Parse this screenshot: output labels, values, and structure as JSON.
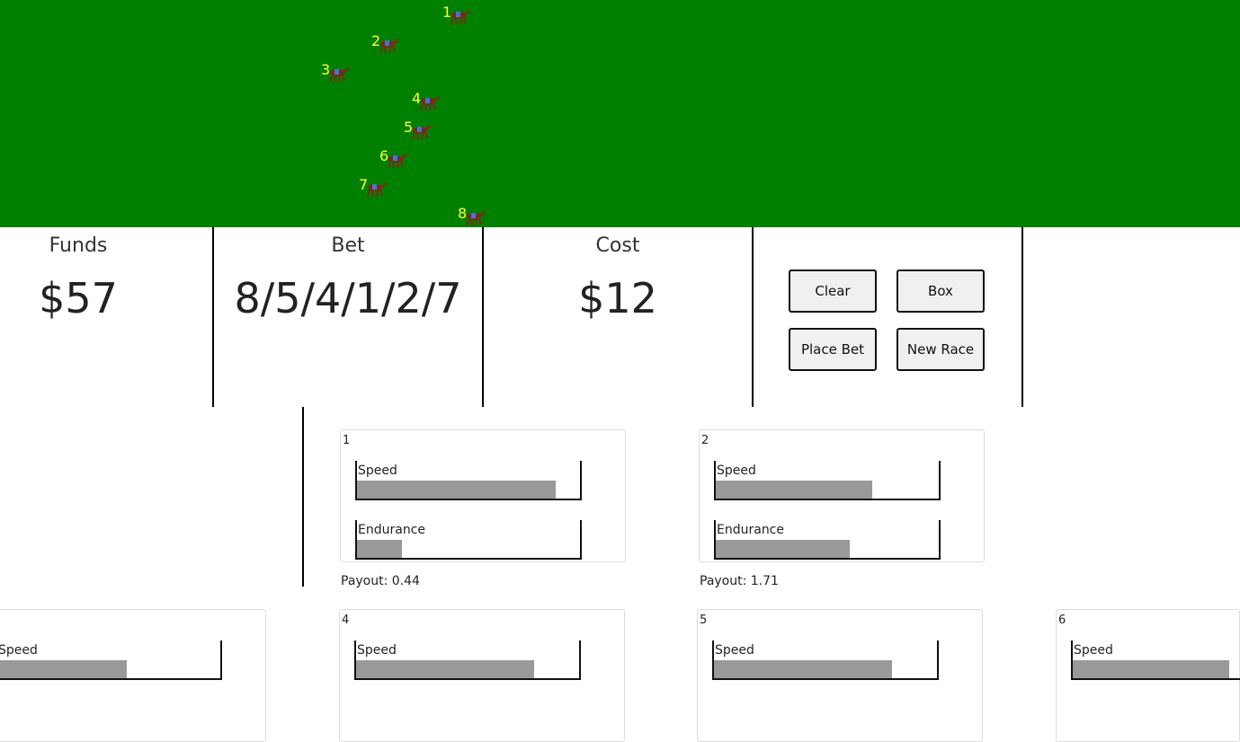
{
  "track": {
    "color": "#008000",
    "horses": [
      {
        "number": "1"
      },
      {
        "number": "2"
      },
      {
        "number": "3"
      },
      {
        "number": "4"
      },
      {
        "number": "5"
      },
      {
        "number": "6"
      },
      {
        "number": "7"
      },
      {
        "number": "8"
      }
    ]
  },
  "funds": {
    "label": "Funds",
    "value": "$57"
  },
  "bet": {
    "label": "Bet",
    "value": "8/5/4/1/2/7"
  },
  "cost": {
    "label": "Cost",
    "value": "$12"
  },
  "buttons": {
    "clear": "Clear",
    "box": "Box",
    "place_bet": "Place Bet",
    "new_race": "New Race"
  },
  "horse_cards": [
    {
      "number": "1",
      "speed_label": "Speed",
      "speed": 0.89,
      "endurance_label": "Endurance",
      "endurance": 0.2,
      "payout": "Payout: 0.44"
    },
    {
      "number": "2",
      "speed_label": "Speed",
      "speed": 0.7,
      "endurance_label": "Endurance",
      "endurance": 0.6,
      "payout": "Payout: 1.71"
    },
    {
      "number": "",
      "speed_label": "Speed",
      "speed": 0.58
    },
    {
      "number": "4",
      "speed_label": "Speed",
      "speed": 0.8
    },
    {
      "number": "5",
      "speed_label": "Speed",
      "speed": 0.8
    },
    {
      "number": "6",
      "speed_label": "Speed",
      "speed": 0.7
    }
  ]
}
